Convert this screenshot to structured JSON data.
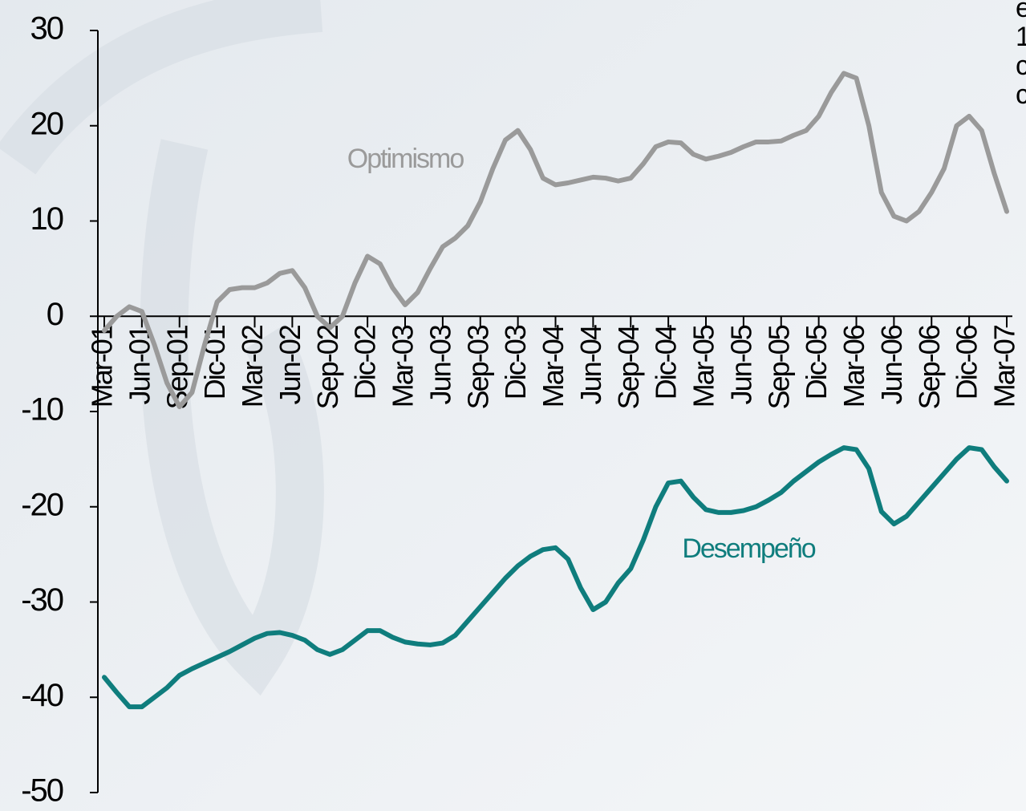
{
  "chart_data": {
    "type": "line",
    "categories": [
      "Mar-01",
      null,
      null,
      "Jun-01",
      null,
      null,
      "Sep-01",
      null,
      null,
      "Dic-01",
      null,
      null,
      "Mar-02",
      null,
      null,
      "Jun-02",
      null,
      null,
      "Sep-02",
      null,
      null,
      "Dic-02",
      null,
      null,
      "Mar-03",
      null,
      null,
      "Jun-03",
      null,
      null,
      "Sep-03",
      null,
      null,
      "Dic-03",
      null,
      null,
      "Mar-04",
      null,
      null,
      "Jun-04",
      null,
      null,
      "Sep-04",
      null,
      null,
      "Dic-04",
      null,
      null,
      "Mar-05",
      null,
      null,
      "Jun-05",
      null,
      null,
      "Sep-05",
      null,
      null,
      "Dic-05",
      null,
      null,
      "Mar-06",
      null,
      null,
      "Jun-06",
      null,
      null,
      "Sep-06",
      null,
      null,
      "Dic-06",
      null,
      null,
      "Mar-07"
    ],
    "series": [
      {
        "name": "Optimismo",
        "color": "#9a9a9a",
        "values": [
          -1.5,
          0,
          1,
          0.5,
          -3,
          -7,
          -9.5,
          -8,
          -3,
          1.5,
          2.8,
          3,
          3,
          3.5,
          4.5,
          4.8,
          3,
          0,
          -1.2,
          0,
          3.5,
          6.3,
          5.5,
          3,
          1.2,
          2.5,
          5,
          7.3,
          8.2,
          9.5,
          12,
          15.5,
          18.5,
          19.5,
          17.5,
          14.5,
          13.8,
          14,
          14.3,
          14.6,
          14.5,
          14.2,
          14.5,
          16,
          17.8,
          18.3,
          18.2,
          17,
          16.5,
          16.8,
          17.2,
          17.8,
          18.3,
          18.3,
          18.4,
          19,
          19.5,
          21,
          23.5,
          25.5,
          25,
          20,
          13,
          10.5,
          10,
          11,
          13,
          15.5,
          20,
          21,
          19.5,
          15,
          11
        ]
      },
      {
        "name": "Desempeño",
        "color": "#0f7d7d",
        "values": [
          -37.9,
          -39.5,
          -41,
          -41,
          -40,
          -39,
          -37.7,
          -37,
          -36.4,
          -35.8,
          -35.2,
          -34.5,
          -33.8,
          -33.3,
          -33.2,
          -33.5,
          -34,
          -35,
          -35.5,
          -35,
          -34,
          -33,
          -33,
          -33.7,
          -34.2,
          -34.4,
          -34.5,
          -34.3,
          -33.5,
          -32,
          -30.5,
          -29,
          -27.5,
          -26.2,
          -25.2,
          -24.5,
          -24.3,
          -25.5,
          -28.5,
          -30.8,
          -30,
          -28,
          -26.5,
          -23.5,
          -20,
          -17.5,
          -17.3,
          -19,
          -20.3,
          -20.6,
          -20.6,
          -20.4,
          -20,
          -19.3,
          -18.5,
          -17.3,
          -16.3,
          -15.3,
          -14.5,
          -13.8,
          -14,
          -16,
          -20.5,
          -21.8,
          -21,
          -19.5,
          -18,
          -16.5,
          -15,
          -13.8,
          -14,
          -15.8,
          -17.3
        ]
      }
    ],
    "ylim": [
      -50,
      30
    ],
    "yticks": [
      -50,
      -40,
      -30,
      -20,
      -10,
      0,
      10,
      20,
      30
    ],
    "side_note": [
      "e",
      "1",
      "c",
      "c"
    ]
  }
}
